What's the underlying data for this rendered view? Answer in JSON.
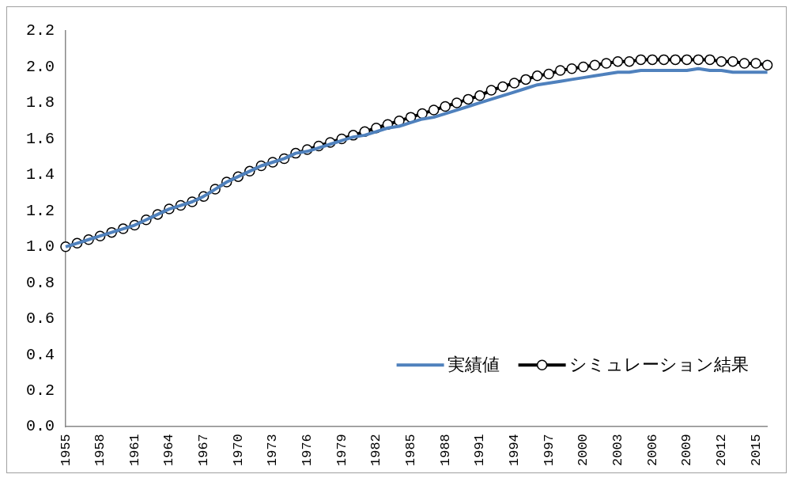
{
  "chart_data": {
    "type": "line",
    "categories": [
      "1955",
      null,
      null,
      "1958",
      null,
      null,
      "1961",
      null,
      null,
      "1964",
      null,
      null,
      "1967",
      null,
      null,
      "1970",
      null,
      null,
      "1973",
      null,
      null,
      "1976",
      null,
      null,
      "1979",
      null,
      null,
      "1982",
      null,
      null,
      "1985",
      null,
      null,
      "1988",
      null,
      null,
      "1991",
      null,
      null,
      "1994",
      null,
      null,
      "1997",
      null,
      null,
      "2000",
      null,
      null,
      "2003",
      null,
      null,
      "2006",
      null,
      null,
      "2009",
      null,
      null,
      "2012",
      null,
      null,
      "2015",
      null
    ],
    "series": [
      {
        "name": "実績値",
        "color": "#4f81bd",
        "marker": "none",
        "values": [
          1.0,
          1.02,
          1.04,
          1.06,
          1.08,
          1.1,
          1.12,
          1.15,
          1.18,
          1.21,
          1.23,
          1.25,
          1.28,
          1.32,
          1.36,
          1.39,
          1.42,
          1.45,
          1.47,
          1.49,
          1.52,
          1.53,
          1.55,
          1.57,
          1.59,
          1.61,
          1.62,
          1.64,
          1.66,
          1.67,
          1.69,
          1.71,
          1.72,
          1.74,
          1.76,
          1.78,
          1.8,
          1.82,
          1.84,
          1.86,
          1.88,
          1.9,
          1.91,
          1.92,
          1.93,
          1.94,
          1.95,
          1.96,
          1.97,
          1.97,
          1.98,
          1.98,
          1.98,
          1.98,
          1.98,
          1.99,
          1.98,
          1.98,
          1.97,
          1.97,
          1.97,
          1.97
        ]
      },
      {
        "name": "シミュレーション結果",
        "color": "#000000",
        "marker": "circle",
        "values": [
          1.0,
          1.02,
          1.04,
          1.06,
          1.08,
          1.1,
          1.12,
          1.15,
          1.18,
          1.21,
          1.23,
          1.25,
          1.28,
          1.32,
          1.36,
          1.39,
          1.42,
          1.45,
          1.47,
          1.49,
          1.52,
          1.54,
          1.56,
          1.58,
          1.6,
          1.62,
          1.64,
          1.66,
          1.68,
          1.7,
          1.72,
          1.74,
          1.76,
          1.78,
          1.8,
          1.82,
          1.84,
          1.87,
          1.89,
          1.91,
          1.93,
          1.95,
          1.96,
          1.98,
          1.99,
          2.0,
          2.01,
          2.02,
          2.03,
          2.03,
          2.04,
          2.04,
          2.04,
          2.04,
          2.04,
          2.04,
          2.04,
          2.03,
          2.03,
          2.02,
          2.02,
          2.01
        ]
      }
    ],
    "ylim": [
      0,
      2.2
    ],
    "yticks": [
      {
        "value": 0,
        "label": "0.0"
      },
      {
        "value": 0.2,
        "label": "0.2"
      },
      {
        "value": 0.4,
        "label": "0.4"
      },
      {
        "value": 0.6,
        "label": "0.6"
      },
      {
        "value": 0.8,
        "label": "0.8"
      },
      {
        "value": 1,
        "label": "1.0"
      },
      {
        "value": 1.2,
        "label": "1.2"
      },
      {
        "value": 1.4,
        "label": "1.4"
      },
      {
        "value": 1.6,
        "label": "1.6"
      },
      {
        "value": 1.8,
        "label": "1.8"
      },
      {
        "value": 2,
        "label": "2.0"
      },
      {
        "value": 2.2,
        "label": "2.2"
      }
    ],
    "grid": false,
    "legend": "bottom right"
  }
}
